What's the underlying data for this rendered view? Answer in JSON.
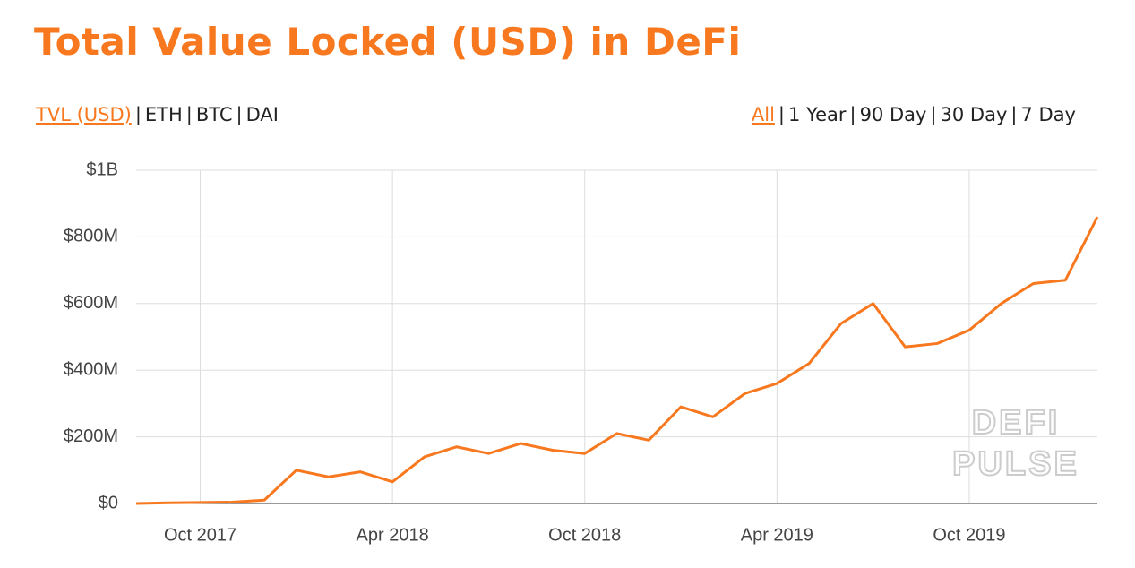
{
  "chart_data": {
    "type": "line",
    "title": "Total Value Locked (USD) in DeFi",
    "metric_tabs": [
      "TVL (USD)",
      "ETH",
      "BTC",
      "DAI"
    ],
    "active_metric": 0,
    "range_tabs": [
      "All",
      "1 Year",
      "90 Day",
      "30 Day",
      "7 Day"
    ],
    "active_range": 0,
    "separator": "|",
    "watermark": [
      "DEFI",
      "PULSE"
    ],
    "x": [
      "2017-08",
      "2017-09",
      "2017-10",
      "2017-11",
      "2017-12",
      "2018-01",
      "2018-02",
      "2018-03",
      "2018-04",
      "2018-05",
      "2018-06",
      "2018-07",
      "2018-08",
      "2018-09",
      "2018-10",
      "2018-11",
      "2018-12",
      "2019-01",
      "2019-02",
      "2019-03",
      "2019-04",
      "2019-05",
      "2019-06",
      "2019-07",
      "2019-08",
      "2019-09",
      "2019-10",
      "2019-11",
      "2019-12",
      "2020-01",
      "2020-02"
    ],
    "series": [
      {
        "name": "TVL (USD)",
        "color": "#f7781e",
        "values": [
          0,
          2000000,
          3000000,
          4000000,
          10000000,
          100000000,
          80000000,
          95000000,
          65000000,
          140000000,
          170000000,
          150000000,
          180000000,
          160000000,
          150000000,
          210000000,
          190000000,
          290000000,
          260000000,
          330000000,
          360000000,
          420000000,
          540000000,
          600000000,
          470000000,
          480000000,
          520000000,
          600000000,
          660000000,
          670000000,
          860000000
        ]
      }
    ],
    "xlim": [
      "2017-08",
      "2020-02"
    ],
    "xticks": [
      {
        "value": "2017-10",
        "label": "Oct 2017"
      },
      {
        "value": "2018-04",
        "label": "Apr 2018"
      },
      {
        "value": "2018-10",
        "label": "Oct 2018"
      },
      {
        "value": "2019-04",
        "label": "Apr 2019"
      },
      {
        "value": "2019-10",
        "label": "Oct 2019"
      }
    ],
    "ylim": [
      0,
      1000000000
    ],
    "yticks": [
      {
        "value": 0,
        "label": "$0"
      },
      {
        "value": 200000000,
        "label": "$200M"
      },
      {
        "value": 400000000,
        "label": "$400M"
      },
      {
        "value": 600000000,
        "label": "$600M"
      },
      {
        "value": 800000000,
        "label": "$800M"
      },
      {
        "value": 1000000000,
        "label": "$1B"
      }
    ],
    "grid": true
  }
}
